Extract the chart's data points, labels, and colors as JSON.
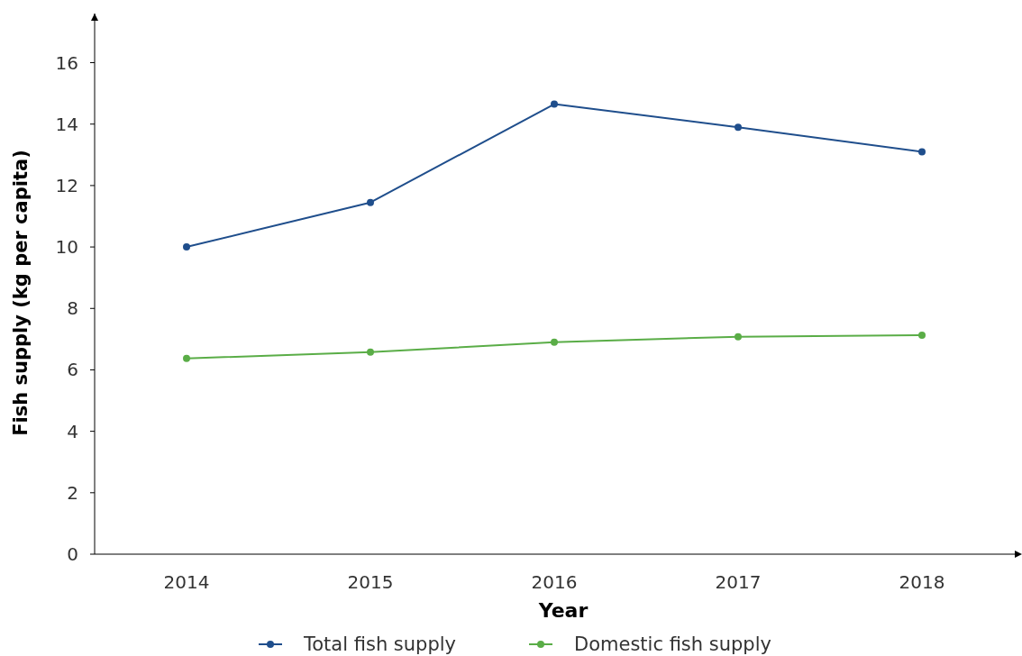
{
  "chart_data": {
    "type": "line",
    "xlabel": "Year",
    "ylabel": "Fish supply (kg per capita)",
    "categories": [
      "2014",
      "2015",
      "2016",
      "2017",
      "2018"
    ],
    "series": [
      {
        "name": "Total fish supply",
        "color": "#1f4e8c",
        "values": [
          10.0,
          11.45,
          14.65,
          13.9,
          13.1
        ]
      },
      {
        "name": "Domestic fish supply",
        "color": "#5aad47",
        "values": [
          6.37,
          6.58,
          6.9,
          7.08,
          7.13
        ]
      }
    ],
    "ylim": [
      0,
      17.6
    ],
    "yticks": [
      0,
      2,
      4,
      6,
      8,
      10,
      12,
      14,
      16
    ],
    "grid": false,
    "legend": "bottom",
    "marker": "circle",
    "line_style": "solid"
  }
}
